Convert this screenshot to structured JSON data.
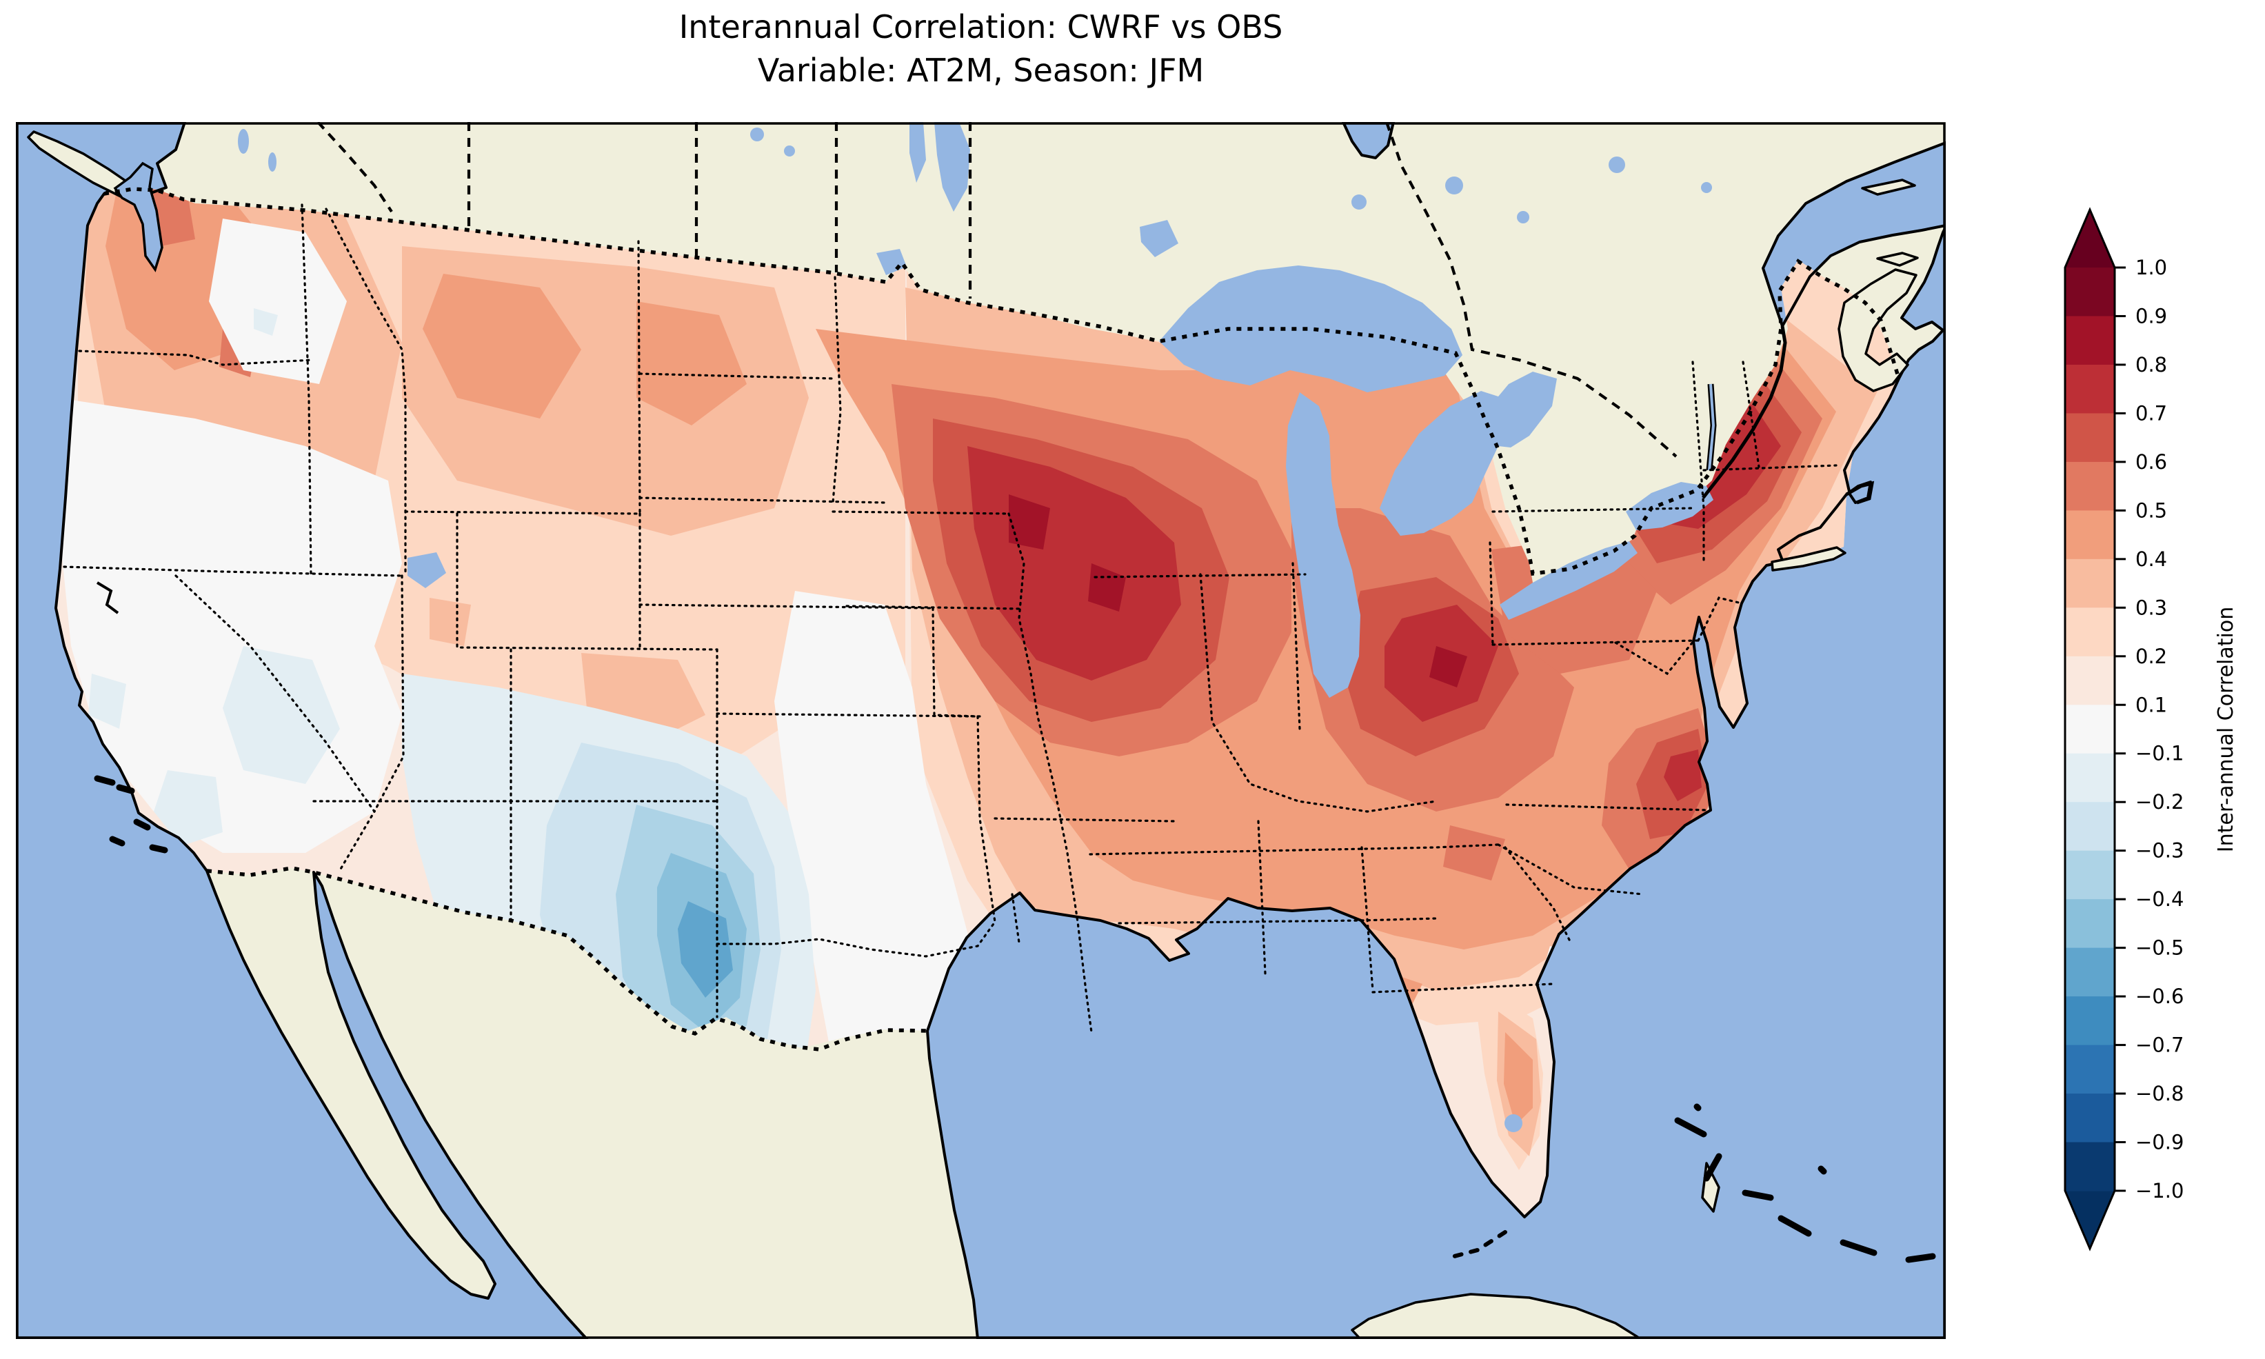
{
  "figure": {
    "title_line1": "Interannual Correlation: CWRF vs OBS",
    "title_line2": "Variable: AT2M, Season: JFM"
  },
  "colorbar": {
    "label": "Inter-annual Correlation",
    "ticks": [
      "1.0",
      "0.9",
      "0.8",
      "0.7",
      "0.6",
      "0.5",
      "0.4",
      "0.3",
      "0.2",
      "0.1",
      "−0.1",
      "−0.2",
      "−0.3",
      "−0.4",
      "−0.5",
      "−0.6",
      "−0.7",
      "−0.8",
      "−0.9",
      "−1.0"
    ],
    "band_colors_top_to_bottom": [
      "#7b0622",
      "#a21328",
      "#bd2f36",
      "#d05548",
      "#e17961",
      "#f19e7c",
      "#f8bc9f",
      "#fdd8c3",
      "#fae8de",
      "#f7f7f7",
      "#e3eef3",
      "#cee3ef",
      "#add3e6",
      "#8ac0db",
      "#60a5cd",
      "#3e8cbf",
      "#2c74b3",
      "#1b5b9c",
      "#0a3a70"
    ],
    "extend_over_color": "#67001f",
    "extend_under_color": "#053061"
  },
  "map": {
    "palette": {
      "ocean": "#94b6e2",
      "land": "#f0efdc",
      "coastline": "#000000",
      "levels": {
        "p0": "#f7f7f7",
        "p01": "#fae8de",
        "p02": "#fdd8c3",
        "p03": "#f8bc9f",
        "p04": "#f19e7c",
        "p05": "#e17961",
        "p06": "#d05548",
        "p07": "#bd2f36",
        "p08": "#a21328",
        "n01": "#e3eef3",
        "n02": "#cee3ef",
        "n03": "#add3e6",
        "n04": "#8ac0db",
        "n05": "#60a5cd"
      }
    }
  },
  "chart_data": {
    "type": "heatmap",
    "subtype": "filled-contour-correlation-map",
    "title": "Interannual Correlation: CWRF vs OBS",
    "subtitle": "Variable: AT2M, Season: JFM",
    "comparison": "CWRF vs OBS",
    "variable": "AT2M",
    "season": "JFM",
    "region_shown": "Contiguous United States (data) with Canada, Mexico, Cuba and Bahamas shown as no-data land",
    "colormap": "RdBu reversed (red = positive correlation, blue = negative correlation)",
    "levels": [
      -1.0,
      -0.9,
      -0.8,
      -0.7,
      -0.6,
      -0.5,
      -0.4,
      -0.3,
      -0.2,
      -0.1,
      0.1,
      0.2,
      0.3,
      0.4,
      0.5,
      0.6,
      0.7,
      0.8,
      0.9,
      1.0
    ],
    "note_levels": "no contour level or tick at 0.0; single neutral band spans -0.1 to 0.1",
    "colorbar_extends_both_ends": true,
    "legend_position": "right",
    "regions_approx": [
      {
        "area": "Upper Midwest (MN/WI/IA/N-IL)",
        "correlation": "0.6 to 0.8"
      },
      {
        "area": "Ohio Valley (OH/WV/IN)",
        "correlation": "0.5 to 0.8"
      },
      {
        "area": "Northeast (upstate NY / New England)",
        "correlation": "0.5 to 0.8"
      },
      {
        "area": "Mid-Atlantic coast (VA/NC)",
        "correlation": "0.5 to 0.7"
      },
      {
        "area": "Great Plains north (MT/ND/SD/NE east)",
        "correlation": "0.3 to 0.5"
      },
      {
        "area": "Pacific Northwest (WA/OR/ID)",
        "correlation": "0.2 to 0.5 with white patches"
      },
      {
        "area": "Southeast (TN/AL/GA/SC)",
        "correlation": "0.2 to 0.5"
      },
      {
        "area": "Florida",
        "correlation": "0.3 to 0.5"
      },
      {
        "area": "Gulf coast (LA/MS/E-TX)",
        "correlation": "0.1 to 0.3"
      },
      {
        "area": "Central corridor (NE/KS/OK/central & S TX)",
        "correlation": "-0.1 to 0.1 (near zero)"
      },
      {
        "area": "California / Nevada / Great Basin",
        "correlation": "-0.1 to 0.1 (near zero)"
      },
      {
        "area": "Southwest (UT/CO/AZ/NM)",
        "correlation": "-0.1 to -0.3"
      },
      {
        "area": "Eastern New Mexico / West Texas core",
        "correlation": "-0.3 to -0.5"
      },
      {
        "area": "Canada / Mexico / Caribbean",
        "correlation": "no data (land fill)"
      }
    ]
  }
}
